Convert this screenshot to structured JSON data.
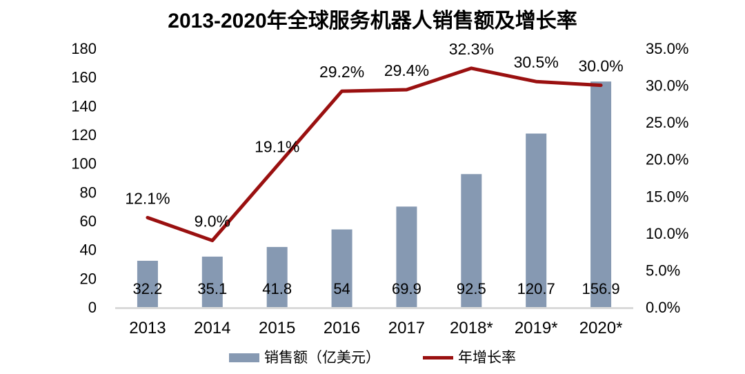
{
  "chart_data": {
    "type": "bar",
    "title": "2013-2020年全球服务机器人销售额及增长率",
    "categories": [
      "2013",
      "2014",
      "2015",
      "2016",
      "2017",
      "2018*",
      "2019*",
      "2020*"
    ],
    "series": [
      {
        "name": "销售额（亿美元）",
        "type": "bar",
        "axis": "left",
        "color": "#8699B2",
        "values": [
          32.2,
          35.1,
          41.8,
          54,
          69.9,
          92.5,
          120.7,
          156.9
        ],
        "labels": [
          "32.2",
          "35.1",
          "41.8",
          "54",
          "69.9",
          "92.5",
          "120.7",
          "156.9"
        ]
      },
      {
        "name": "年增长率",
        "type": "line",
        "axis": "right",
        "color": "#9A1010",
        "values": [
          12.1,
          9.0,
          19.1,
          29.2,
          29.4,
          32.3,
          30.5,
          30.0
        ],
        "labels": [
          "12.1%",
          "9.0%",
          "19.1%",
          "29.2%",
          "29.4%",
          "32.3%",
          "30.5%",
          "30.0%"
        ]
      }
    ],
    "axes": {
      "left": {
        "min": 0,
        "max": 180,
        "step": 20,
        "ticks": [
          "0",
          "20",
          "40",
          "60",
          "80",
          "100",
          "120",
          "140",
          "160",
          "180"
        ]
      },
      "right": {
        "min": 0,
        "max": 35,
        "step": 5,
        "ticks": [
          "0.0%",
          "5.0%",
          "10.0%",
          "15.0%",
          "20.0%",
          "25.0%",
          "30.0%",
          "35.0%"
        ]
      }
    },
    "grid": false,
    "background": "#FFFFFF",
    "baseline_color": "#D9D9D9",
    "legend": {
      "position": "bottom",
      "entries": [
        {
          "label": "销售额（亿美元）",
          "swatch": "bar",
          "color": "#8699B2"
        },
        {
          "label": "年增长率",
          "swatch": "line",
          "color": "#9A1010"
        }
      ]
    }
  }
}
